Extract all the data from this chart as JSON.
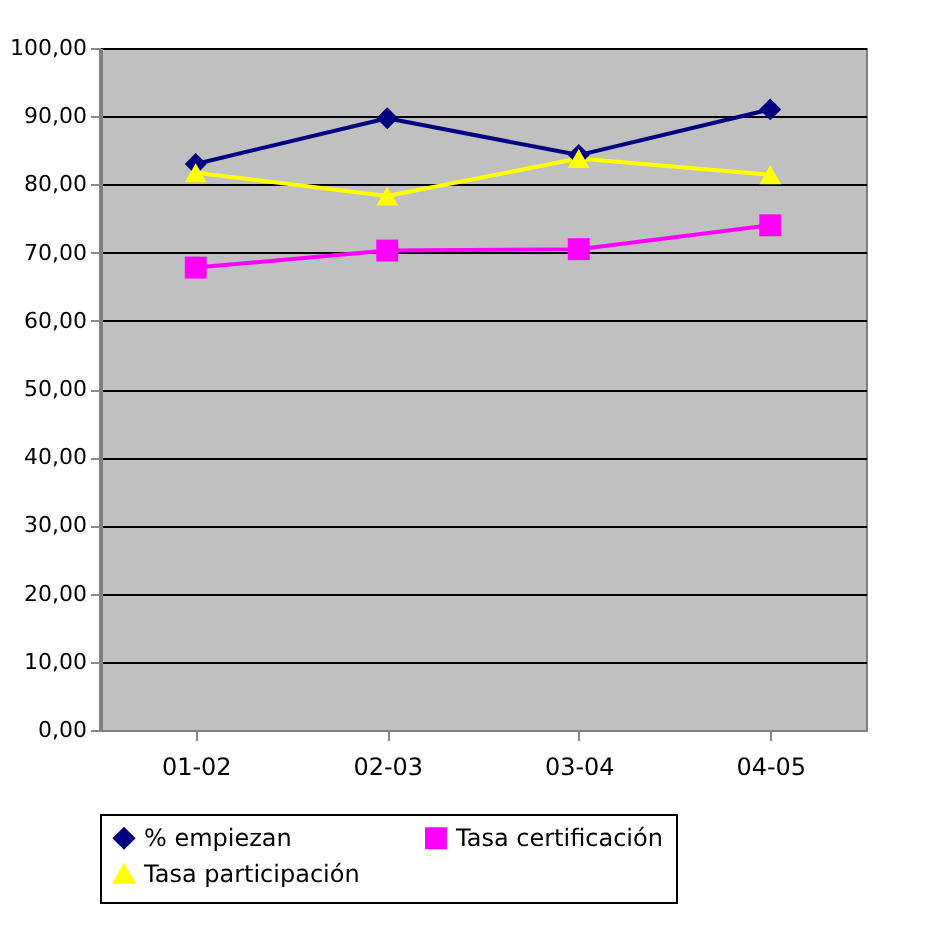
{
  "chart_data": {
    "type": "line",
    "categories": [
      "01-02",
      "02-03",
      "03-04",
      "04-05"
    ],
    "series": [
      {
        "name": "% empiezan",
        "color": "#000080",
        "marker": "diamond",
        "values": [
          83,
          89.7,
          84.3,
          91
        ]
      },
      {
        "name": "Tasa certificación",
        "color": "#ff00ff",
        "marker": "square",
        "values": [
          67.8,
          70.3,
          70.5,
          74
        ]
      },
      {
        "name": "Tasa participación",
        "color": "#ffff00",
        "marker": "triangle",
        "values": [
          81.7,
          78.3,
          83.8,
          81.4
        ]
      }
    ],
    "ylim": [
      0,
      100
    ],
    "yticks": [
      {
        "value": 0,
        "label": "0,00"
      },
      {
        "value": 10,
        "label": "10,00"
      },
      {
        "value": 20,
        "label": "20,00"
      },
      {
        "value": 30,
        "label": "30,00"
      },
      {
        "value": 40,
        "label": "40,00"
      },
      {
        "value": 50,
        "label": "50,00"
      },
      {
        "value": 60,
        "label": "60,00"
      },
      {
        "value": 70,
        "label": "70,00"
      },
      {
        "value": 80,
        "label": "80,00"
      },
      {
        "value": 90,
        "label": "90,00"
      },
      {
        "value": 100,
        "label": "100,00"
      }
    ],
    "grid": "y",
    "legend": "bottom"
  }
}
